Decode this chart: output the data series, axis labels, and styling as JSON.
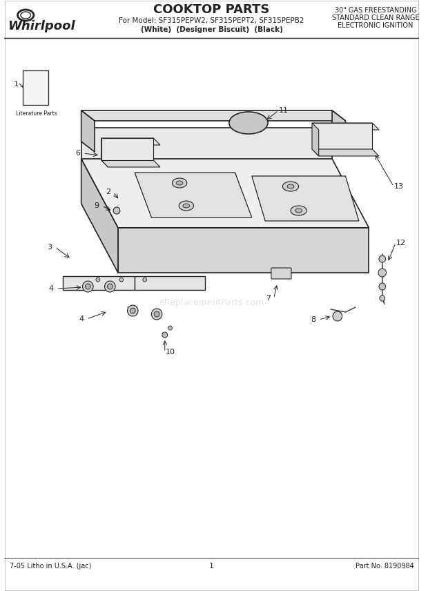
{
  "title": "COOKTOP PARTS",
  "subtitle_line1": "For Model: SF315PEPW2, SF315PEPT2, SF315PEPB2",
  "subtitle_line2": "(White)  (Designer Biscuit)  (Black)",
  "top_right_line1": "30\" GAS FREESTANDING",
  "top_right_line2": "STANDARD CLEAN RANGE",
  "top_right_line3": "ELECTRONIC IGNITION",
  "bottom_left": "7-05 Litho in U.S.A. (jac)",
  "bottom_center": "1",
  "bottom_right": "Part No. 8190984",
  "brand": "Whirlpool",
  "watermark": "eReplacementParts.com",
  "bg_color": "#ffffff",
  "line_color": "#222222",
  "literature_label": "Literature Parts"
}
